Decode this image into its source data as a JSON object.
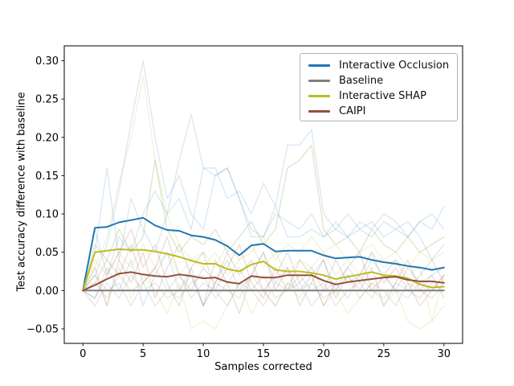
{
  "figure": {
    "background": "#ffffff"
  },
  "axes": {
    "xlabel": "Samples corrected",
    "ylabel": "Test accuracy difference with baseline"
  },
  "chart_data": {
    "type": "line",
    "title": "",
    "xlabel": "Samples corrected",
    "ylabel": "Test accuracy difference with baseline",
    "xlim": [
      -1.55,
      31.55
    ],
    "ylim": [
      -0.069,
      0.3195
    ],
    "grid": false,
    "legend_position": "upper right",
    "x_ticks": {
      "values": [
        0,
        5,
        10,
        15,
        20,
        25,
        30
      ],
      "labels": [
        "0",
        "5",
        "10",
        "15",
        "20",
        "25",
        "30"
      ]
    },
    "y_ticks": {
      "values": [
        0.3,
        0.25,
        0.2,
        0.15,
        0.1,
        0.05,
        0.0,
        -0.05
      ],
      "labels": [
        "0.30",
        "0.25",
        "0.20",
        "0.15",
        "0.10",
        "0.05",
        "0.00",
        "−0.05"
      ]
    },
    "x": [
      0,
      1,
      2,
      3,
      4,
      5,
      6,
      7,
      8,
      9,
      10,
      11,
      12,
      13,
      14,
      15,
      16,
      17,
      18,
      19,
      20,
      21,
      22,
      23,
      24,
      25,
      26,
      27,
      28,
      29,
      30
    ],
    "series": [
      {
        "name": "Interactive Occlusion",
        "color": "#1f77b4",
        "width": 2,
        "opacity": 1,
        "values": [
          0,
          0.082,
          0.083,
          0.089,
          0.092,
          0.095,
          0.085,
          0.079,
          0.078,
          0.072,
          0.07,
          0.066,
          0.058,
          0.046,
          0.059,
          0.061,
          0.051,
          0.052,
          0.052,
          0.052,
          0.046,
          0.042,
          0.043,
          0.044,
          0.04,
          0.037,
          0.035,
          0.032,
          0.03,
          0.027,
          0.03
        ]
      },
      {
        "name": "Baseline",
        "color": "#7f7f7f",
        "width": 2,
        "opacity": 1,
        "values": [
          0,
          0,
          0,
          0,
          0,
          0,
          0,
          0,
          0,
          0,
          0,
          0,
          0,
          0,
          0,
          0,
          0,
          0,
          0,
          0,
          0,
          0,
          0,
          0,
          0,
          0,
          0,
          0,
          0,
          0,
          0
        ]
      },
      {
        "name": "Interactive SHAP",
        "color": "#bcbd22",
        "width": 2,
        "opacity": 1,
        "values": [
          0,
          0.05,
          0.052,
          0.054,
          0.053,
          0.053,
          0.051,
          0.048,
          0.044,
          0.039,
          0.035,
          0.035,
          0.028,
          0.025,
          0.034,
          0.038,
          0.027,
          0.025,
          0.025,
          0.023,
          0.02,
          0.015,
          0.018,
          0.021,
          0.024,
          0.02,
          0.019,
          0.016,
          0.008,
          0.004,
          0.005
        ]
      },
      {
        "name": "CAIPI",
        "color": "#96503f",
        "width": 2,
        "opacity": 1,
        "values": [
          0,
          0.007,
          0.015,
          0.022,
          0.024,
          0.021,
          0.019,
          0.018,
          0.021,
          0.019,
          0.016,
          0.017,
          0.011,
          0.009,
          0.019,
          0.017,
          0.017,
          0.02,
          0.02,
          0.02,
          0.013,
          0.008,
          0.011,
          0.013,
          0.015,
          0.017,
          0.018,
          0.014,
          0.012,
          0.012,
          0.01
        ]
      }
    ],
    "background_runs": [
      {
        "method": "Interactive Occlusion",
        "color": "#1f77b4",
        "opacity": 0.16,
        "values": [
          0,
          0.02,
          0.06,
          0.13,
          0.22,
          0.3,
          0.2,
          0.12,
          0.15,
          0.1,
          0.08,
          0.15,
          0.16,
          0.12,
          0.07,
          0.07,
          0.11,
          0.07,
          0.07,
          0.08,
          0.07,
          0.09,
          0.07,
          0.08,
          0.07,
          0.09,
          0.08,
          0.07,
          0.09,
          0.08,
          0.11
        ]
      },
      {
        "method": "Interactive Occlusion",
        "color": "#1f77b4",
        "opacity": 0.16,
        "values": [
          0,
          0.05,
          0.16,
          0.04,
          0.12,
          0.08,
          0.05,
          0.1,
          0.17,
          0.23,
          0.16,
          0.15,
          0.16,
          0.12,
          0.08,
          0.07,
          0.1,
          0.09,
          0.08,
          0.1,
          0.07,
          0.08,
          0.1,
          0.08,
          0.09,
          0.07,
          0.08,
          0.09,
          0.07,
          0.04,
          0.06
        ]
      },
      {
        "method": "Interactive Occlusion",
        "color": "#1f77b4",
        "opacity": 0.16,
        "values": [
          0,
          0.08,
          0.02,
          0.07,
          0.05,
          0.1,
          0.13,
          0.1,
          0.12,
          0.08,
          0.16,
          0.16,
          0.12,
          0.13,
          0.1,
          0.14,
          0.11,
          0.19,
          0.19,
          0.21,
          0.1,
          0.08,
          0.07,
          0.09,
          0.08,
          0.1,
          0.09,
          0.07,
          0.09,
          0.1,
          0.08
        ]
      },
      {
        "method": "Interactive Occlusion",
        "color": "#1f77b4",
        "opacity": 0.16,
        "values": [
          0,
          -0.01,
          0.03,
          0.0,
          0.04,
          -0.02,
          0.02,
          0.05,
          0.0,
          0.03,
          -0.02,
          0.01,
          0.04,
          0.0,
          0.02,
          0.05,
          0.01,
          0.03,
          0.0,
          0.02,
          0.04,
          0.0,
          0.03,
          0.01,
          0.04,
          0.02,
          0.0,
          0.03,
          0.01,
          0.02,
          0.03
        ]
      },
      {
        "method": "Interactive SHAP",
        "color": "#bcbd22",
        "opacity": 0.18,
        "values": [
          0,
          0.03,
          0.07,
          0.14,
          0.2,
          0.28,
          0.17,
          0.1,
          0.06,
          0.04,
          0.05,
          0.03,
          0.06,
          0.04,
          0.05,
          0.07,
          0.04,
          0.06,
          0.05,
          0.07,
          0.05,
          0.06,
          0.04,
          0.05,
          0.06,
          0.04,
          0.05,
          0.03,
          0.05,
          0.04,
          0.05
        ]
      },
      {
        "method": "Interactive SHAP",
        "color": "#8a9a3a",
        "opacity": 0.25,
        "values": [
          0,
          0.06,
          0.04,
          0.08,
          0.05,
          0.07,
          0.17,
          0.08,
          0.05,
          0.07,
          0.06,
          0.08,
          0.05,
          0.07,
          0.09,
          0.06,
          0.08,
          0.16,
          0.17,
          0.19,
          0.08,
          0.06,
          0.07,
          0.05,
          0.08,
          0.06,
          0.05,
          0.07,
          0.05,
          0.06,
          0.07
        ]
      },
      {
        "method": "Interactive SHAP",
        "color": "#bcbd22",
        "opacity": 0.18,
        "values": [
          0,
          0.02,
          -0.02,
          0.03,
          -0.01,
          0.02,
          0.0,
          -0.03,
          0.01,
          -0.05,
          -0.04,
          -0.05,
          -0.02,
          0.01,
          -0.03,
          0.0,
          -0.02,
          0.01,
          -0.01,
          0.02,
          -0.02,
          0.0,
          -0.03,
          -0.01,
          0.01,
          -0.02,
          0.0,
          -0.04,
          -0.05,
          -0.04,
          -0.02
        ]
      },
      {
        "method": "Interactive SHAP",
        "color": "#bcbd22",
        "opacity": 0.18,
        "values": [
          0,
          0.04,
          0.02,
          0.05,
          0.03,
          0.06,
          0.03,
          0.05,
          0.02,
          0.04,
          0.03,
          0.05,
          0.02,
          0.04,
          0.06,
          0.03,
          0.05,
          0.02,
          0.04,
          0.03,
          0.05,
          0.02,
          0.04,
          0.02,
          0.05,
          0.03,
          0.04,
          0.02,
          0.03,
          -0.04,
          0.02
        ]
      },
      {
        "method": "Baseline",
        "color": "#7f7f7f",
        "opacity": 0.18,
        "values": [
          0,
          0.01,
          -0.01,
          0.02,
          0.0,
          0.01,
          -0.02,
          0.0,
          0.02,
          -0.01,
          0.01,
          0.0,
          -0.02,
          0.01,
          0.0,
          0.02,
          -0.01,
          0.0,
          0.01,
          -0.02,
          0.0,
          0.01,
          -0.01,
          0.02,
          0.0,
          -0.01,
          0.01,
          0.0,
          -0.01,
          0.01,
          0.0
        ]
      },
      {
        "method": "Baseline",
        "color": "#7f7f7f",
        "opacity": 0.18,
        "values": [
          0,
          -0.02,
          0.01,
          -0.01,
          0.02,
          0.0,
          0.01,
          -0.01,
          0.0,
          0.02,
          -0.02,
          0.01,
          0.0,
          -0.01,
          0.02,
          0.0,
          -0.02,
          0.01,
          0.0,
          0.01,
          -0.01,
          0.0,
          0.02,
          -0.01,
          0.01,
          0.0,
          -0.02,
          0.01,
          0.0,
          -0.01,
          0.01
        ]
      },
      {
        "method": "Baseline",
        "color": "#7f7f7f",
        "opacity": 0.18,
        "values": [
          0,
          0.02,
          0.0,
          0.01,
          -0.02,
          0.01,
          0.03,
          0.0,
          -0.01,
          0.01,
          0.02,
          -0.01,
          0.01,
          0.03,
          0.0,
          -0.02,
          0.01,
          0.0,
          0.02,
          0.0,
          0.01,
          -0.02,
          0.0,
          0.01,
          -0.01,
          0.02,
          0.0,
          -0.01,
          0.01,
          0.0,
          0.02
        ]
      },
      {
        "method": "CAIPI",
        "color": "#96503f",
        "opacity": 0.18,
        "values": [
          0,
          0.03,
          -0.02,
          0.04,
          0.01,
          0.05,
          -0.01,
          0.03,
          0.06,
          0.02,
          -0.02,
          0.04,
          0.01,
          -0.03,
          0.02,
          0.05,
          0.0,
          0.03,
          -0.02,
          0.01,
          0.04,
          -0.01,
          0.02,
          0.0,
          0.03,
          -0.02,
          0.01,
          0.04,
          0.0,
          0.02,
          -0.01
        ]
      },
      {
        "method": "CAIPI",
        "color": "#96503f",
        "opacity": 0.18,
        "values": [
          0,
          -0.01,
          0.02,
          0.05,
          0.08,
          0.03,
          0.06,
          0.01,
          -0.02,
          0.03,
          0.05,
          0.0,
          0.03,
          0.06,
          0.01,
          -0.01,
          0.03,
          0.0,
          0.04,
          0.02,
          -0.02,
          0.01,
          0.03,
          0.05,
          0.0,
          0.02,
          0.04,
          0.01,
          -0.02,
          0.0,
          0.02
        ]
      },
      {
        "method": "CAIPI",
        "color": "#96503f",
        "opacity": 0.18,
        "values": [
          0,
          0.01,
          0.04,
          0.02,
          0.06,
          0.01,
          0.03,
          0.07,
          0.02,
          0.0,
          0.03,
          0.01,
          0.05,
          0.02,
          0.04,
          0.0,
          0.02,
          0.05,
          0.01,
          0.03,
          0.0,
          0.04,
          0.01,
          0.02,
          0.05,
          0.01,
          0.03,
          0.0,
          0.02,
          0.04,
          0.01
        ]
      }
    ]
  },
  "legend": {
    "items": [
      {
        "label": "Interactive Occlusion",
        "color": "#1f77b4"
      },
      {
        "label": "Baseline",
        "color": "#7f7f7f"
      },
      {
        "label": "Interactive SHAP",
        "color": "#bcbd22"
      },
      {
        "label": "CAIPI",
        "color": "#96503f"
      }
    ]
  }
}
